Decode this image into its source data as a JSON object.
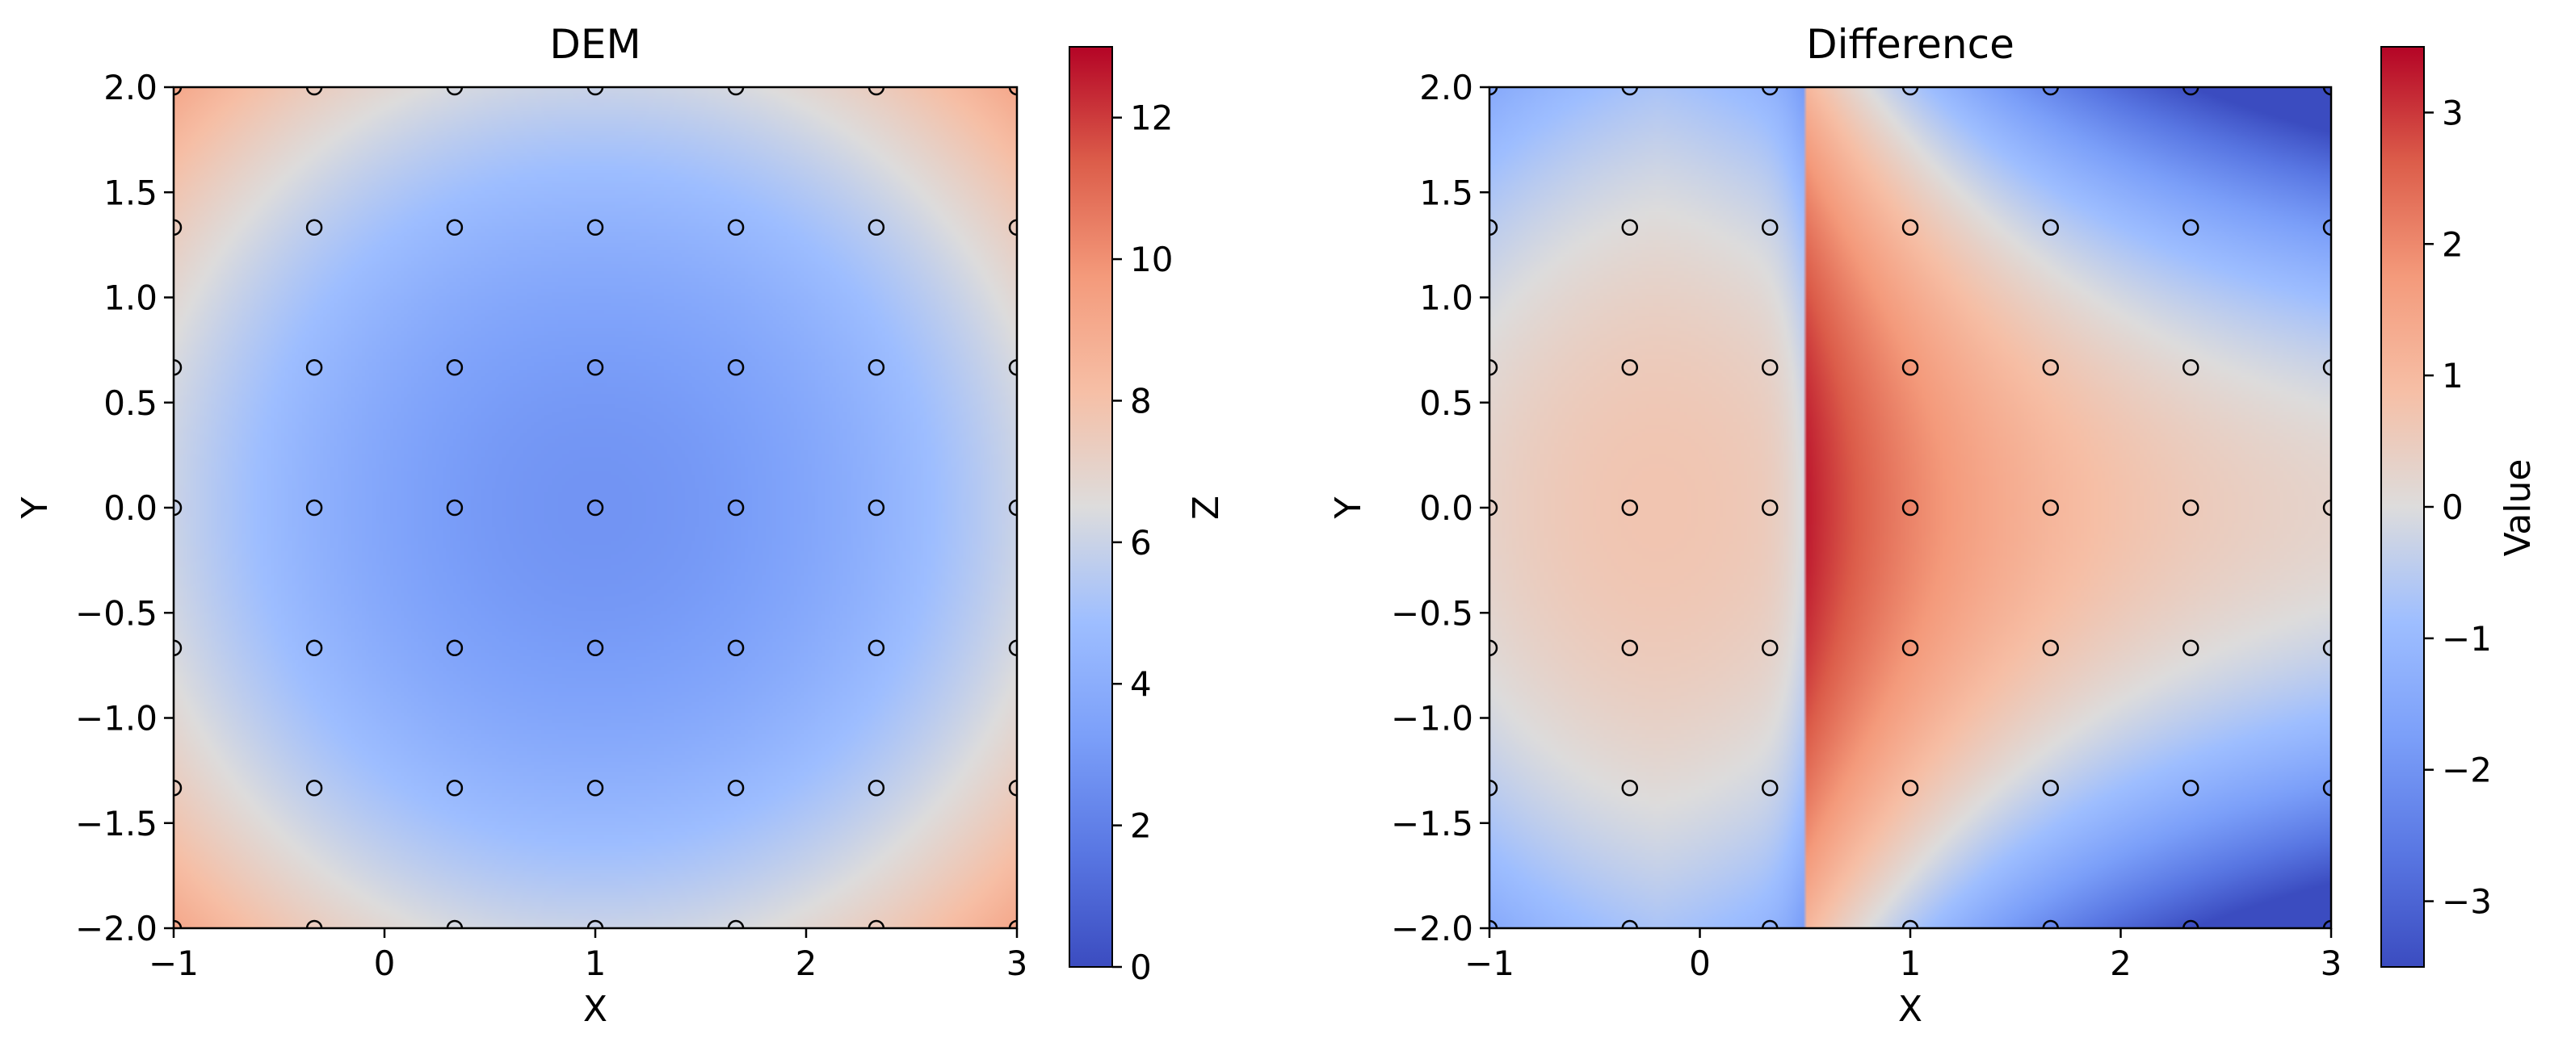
{
  "chart_data": [
    {
      "type": "heatmap",
      "title": "DEM",
      "xlabel": "X",
      "ylabel": "Y",
      "xlim": [
        -1,
        3
      ],
      "ylim": [
        -2,
        2
      ],
      "xticks": [
        -1,
        0,
        1,
        2,
        3
      ],
      "xtick_labels": [
        "−1",
        "0",
        "1",
        "2",
        "3"
      ],
      "yticks": [
        2.0,
        1.5,
        1.0,
        0.5,
        0.0,
        -0.5,
        -1.0,
        -1.5,
        -2.0
      ],
      "ytick_labels": [
        "2.0",
        "1.5",
        "1.0",
        "0.5",
        "0.0",
        "−0.5",
        "−1.0",
        "−1.5",
        "−2.0"
      ],
      "colormap": "coolwarm",
      "colorbar": {
        "label": "Z",
        "range": [
          0,
          13
        ],
        "ticks": [
          0,
          2,
          4,
          6,
          8,
          10,
          12
        ],
        "tick_labels": [
          "0",
          "2",
          "4",
          "6",
          "8",
          "10",
          "12"
        ]
      },
      "field": {
        "description_values": "approx. radial bowl centered at (1, 0)",
        "center": [
          1,
          0
        ],
        "min_value": 2.8,
        "max_value": 9.4
      },
      "sample_points": {
        "x": [
          -1,
          -0.333,
          0.333,
          1,
          1.667,
          2.333,
          3
        ],
        "y": [
          2,
          1.333,
          0.667,
          0,
          -0.667,
          -1.333,
          -2
        ],
        "marker": "open-circle"
      }
    },
    {
      "type": "heatmap",
      "title": "Difference",
      "xlabel": "X",
      "ylabel": "Y",
      "xlim": [
        -1,
        3
      ],
      "ylim": [
        -2,
        2
      ],
      "xticks": [
        -1,
        0,
        1,
        2,
        3
      ],
      "xtick_labels": [
        "−1",
        "0",
        "1",
        "2",
        "3"
      ],
      "yticks": [
        2.0,
        1.5,
        1.0,
        0.5,
        0.0,
        -0.5,
        -1.0,
        -1.5,
        -2.0
      ],
      "ytick_labels": [
        "2.0",
        "1.5",
        "1.0",
        "0.5",
        "0.0",
        "−0.5",
        "−1.0",
        "−1.5",
        "−2.0"
      ],
      "colormap": "coolwarm",
      "colorbar": {
        "label": "Value",
        "range": [
          -3.5,
          3.5
        ],
        "ticks": [
          3,
          2,
          1,
          0,
          -1,
          -2,
          -3
        ],
        "tick_labels": [
          "3",
          "2",
          "1",
          "0",
          "−1",
          "−2",
          "−3"
        ]
      },
      "field": {
        "discontinuity_x": 0.5,
        "max_value": 3.4,
        "min_value": -3.0
      },
      "sample_points": {
        "x": [
          -1,
          -0.333,
          0.333,
          1,
          1.667,
          2.333,
          3
        ],
        "y": [
          2,
          1.333,
          0.667,
          0,
          -0.667,
          -1.333,
          -2
        ],
        "marker": "open-circle"
      }
    }
  ]
}
